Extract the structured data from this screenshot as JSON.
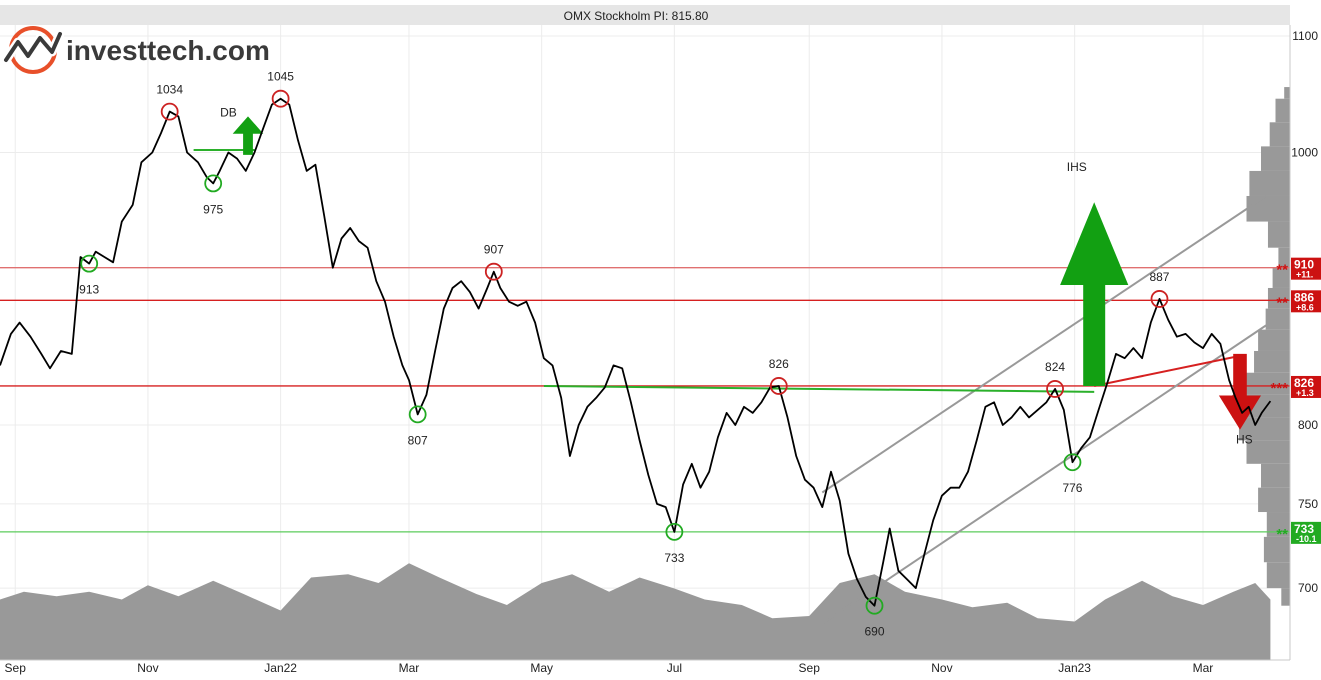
{
  "logo": {
    "text": "investtech.com",
    "accent_color": "#e8502a"
  },
  "chart_data": {
    "type": "line",
    "title": "OMX Stockholm PI: 815.80",
    "last_value": 815.8,
    "y_scale": "log",
    "ylim": [
      660,
      1110
    ],
    "y_ticks": [
      {
        "value": 700,
        "label": "700"
      },
      {
        "value": 750,
        "label": "750"
      },
      {
        "value": 800,
        "label": "800"
      },
      {
        "value": 1000,
        "label": "1000"
      },
      {
        "value": 1100,
        "label": "1100"
      }
    ],
    "x_ticks": [
      {
        "date": "2021-09-01",
        "label": "Sep"
      },
      {
        "date": "2021-11-01",
        "label": "Nov"
      },
      {
        "date": "2022-01-01",
        "label": "Jan22"
      },
      {
        "date": "2022-03-01",
        "label": "Mar"
      },
      {
        "date": "2022-05-01",
        "label": "May"
      },
      {
        "date": "2022-07-01",
        "label": "Jul"
      },
      {
        "date": "2022-09-01",
        "label": "Sep"
      },
      {
        "date": "2022-11-01",
        "label": "Nov"
      },
      {
        "date": "2023-01-01",
        "label": "Jan23"
      },
      {
        "date": "2023-03-01",
        "label": "Mar"
      }
    ],
    "xlim": [
      "2021-08-25",
      "2023-04-10"
    ],
    "grid": true,
    "price_series": [
      [
        "2021-08-25",
        840
      ],
      [
        "2021-08-30",
        862
      ],
      [
        "2021-09-03",
        870
      ],
      [
        "2021-09-08",
        860
      ],
      [
        "2021-09-13",
        848
      ],
      [
        "2021-09-17",
        838
      ],
      [
        "2021-09-22",
        850
      ],
      [
        "2021-09-27",
        848
      ],
      [
        "2021-10-01",
        918
      ],
      [
        "2021-10-05",
        913
      ],
      [
        "2021-10-08",
        922
      ],
      [
        "2021-10-12",
        918
      ],
      [
        "2021-10-16",
        914
      ],
      [
        "2021-10-20",
        945
      ],
      [
        "2021-10-25",
        958
      ],
      [
        "2021-10-29",
        992
      ],
      [
        "2021-11-03",
        1000
      ],
      [
        "2021-11-07",
        1016
      ],
      [
        "2021-11-11",
        1034
      ],
      [
        "2021-11-15",
        1030
      ],
      [
        "2021-11-19",
        1000
      ],
      [
        "2021-11-24",
        992
      ],
      [
        "2021-11-28",
        980
      ],
      [
        "2021-12-01",
        975
      ],
      [
        "2021-12-04",
        985
      ],
      [
        "2021-12-08",
        1000
      ],
      [
        "2021-12-12",
        995
      ],
      [
        "2021-12-16",
        985
      ],
      [
        "2021-12-20",
        1000
      ],
      [
        "2021-12-24",
        1020
      ],
      [
        "2021-12-28",
        1040
      ],
      [
        "2022-01-01",
        1045
      ],
      [
        "2022-01-05",
        1040
      ],
      [
        "2022-01-09",
        1010
      ],
      [
        "2022-01-13",
        985
      ],
      [
        "2022-01-17",
        990
      ],
      [
        "2022-01-21",
        950
      ],
      [
        "2022-01-25",
        910
      ],
      [
        "2022-01-29",
        932
      ],
      [
        "2022-02-02",
        940
      ],
      [
        "2022-02-06",
        930
      ],
      [
        "2022-02-10",
        925
      ],
      [
        "2022-02-14",
        900
      ],
      [
        "2022-02-18",
        885
      ],
      [
        "2022-02-22",
        860
      ],
      [
        "2022-02-26",
        840
      ],
      [
        "2022-03-01",
        830
      ],
      [
        "2022-03-05",
        807
      ],
      [
        "2022-03-09",
        820
      ],
      [
        "2022-03-13",
        850
      ],
      [
        "2022-03-17",
        880
      ],
      [
        "2022-03-21",
        895
      ],
      [
        "2022-03-25",
        900
      ],
      [
        "2022-03-29",
        892
      ],
      [
        "2022-04-02",
        880
      ],
      [
        "2022-04-06",
        895
      ],
      [
        "2022-04-09",
        907
      ],
      [
        "2022-04-12",
        895
      ],
      [
        "2022-04-16",
        885
      ],
      [
        "2022-04-20",
        882
      ],
      [
        "2022-04-24",
        885
      ],
      [
        "2022-04-28",
        870
      ],
      [
        "2022-05-02",
        845
      ],
      [
        "2022-05-06",
        840
      ],
      [
        "2022-05-10",
        818
      ],
      [
        "2022-05-14",
        780
      ],
      [
        "2022-05-18",
        800
      ],
      [
        "2022-05-22",
        812
      ],
      [
        "2022-05-26",
        818
      ],
      [
        "2022-05-30",
        825
      ],
      [
        "2022-06-03",
        840
      ],
      [
        "2022-06-07",
        838
      ],
      [
        "2022-06-11",
        815
      ],
      [
        "2022-06-15",
        790
      ],
      [
        "2022-06-19",
        768
      ],
      [
        "2022-06-23",
        750
      ],
      [
        "2022-06-27",
        748
      ],
      [
        "2022-07-01",
        733
      ],
      [
        "2022-07-05",
        762
      ],
      [
        "2022-07-09",
        775
      ],
      [
        "2022-07-13",
        760
      ],
      [
        "2022-07-17",
        770
      ],
      [
        "2022-07-21",
        792
      ],
      [
        "2022-07-25",
        808
      ],
      [
        "2022-07-29",
        800
      ],
      [
        "2022-08-02",
        812
      ],
      [
        "2022-08-06",
        808
      ],
      [
        "2022-08-10",
        815
      ],
      [
        "2022-08-14",
        825
      ],
      [
        "2022-08-18",
        826
      ],
      [
        "2022-08-22",
        805
      ],
      [
        "2022-08-26",
        780
      ],
      [
        "2022-08-30",
        765
      ],
      [
        "2022-09-03",
        760
      ],
      [
        "2022-09-07",
        748
      ],
      [
        "2022-09-11",
        770
      ],
      [
        "2022-09-15",
        752
      ],
      [
        "2022-09-19",
        720
      ],
      [
        "2022-09-23",
        705
      ],
      [
        "2022-09-27",
        695
      ],
      [
        "2022-10-01",
        690
      ],
      [
        "2022-10-05",
        715
      ],
      [
        "2022-10-08",
        735
      ],
      [
        "2022-10-12",
        710
      ],
      [
        "2022-10-16",
        705
      ],
      [
        "2022-10-20",
        700
      ],
      [
        "2022-10-24",
        720
      ],
      [
        "2022-10-28",
        740
      ],
      [
        "2022-11-01",
        755
      ],
      [
        "2022-11-05",
        760
      ],
      [
        "2022-11-09",
        760
      ],
      [
        "2022-11-13",
        770
      ],
      [
        "2022-11-17",
        790
      ],
      [
        "2022-11-21",
        812
      ],
      [
        "2022-11-25",
        815
      ],
      [
        "2022-11-29",
        800
      ],
      [
        "2022-12-03",
        805
      ],
      [
        "2022-12-07",
        812
      ],
      [
        "2022-12-11",
        805
      ],
      [
        "2022-12-15",
        810
      ],
      [
        "2022-12-19",
        815
      ],
      [
        "2022-12-23",
        824
      ],
      [
        "2022-12-27",
        810
      ],
      [
        "2022-12-31",
        776
      ],
      [
        "2023-01-04",
        785
      ],
      [
        "2023-01-08",
        792
      ],
      [
        "2023-01-12",
        810
      ],
      [
        "2023-01-16",
        828
      ],
      [
        "2023-01-20",
        848
      ],
      [
        "2023-01-24",
        845
      ],
      [
        "2023-01-28",
        852
      ],
      [
        "2023-02-01",
        845
      ],
      [
        "2023-02-05",
        870
      ],
      [
        "2023-02-09",
        887
      ],
      [
        "2023-02-13",
        872
      ],
      [
        "2023-02-17",
        860
      ],
      [
        "2023-02-21",
        862
      ],
      [
        "2023-02-25",
        856
      ],
      [
        "2023-03-01",
        852
      ],
      [
        "2023-03-05",
        862
      ],
      [
        "2023-03-09",
        855
      ],
      [
        "2023-03-13",
        830
      ],
      [
        "2023-03-16",
        818
      ],
      [
        "2023-03-19",
        808
      ],
      [
        "2023-03-22",
        812
      ],
      [
        "2023-03-25",
        800
      ],
      [
        "2023-03-28",
        808
      ],
      [
        "2023-04-01",
        815.8
      ]
    ],
    "annotations": [
      {
        "type": "peak",
        "date": "2021-11-11",
        "value": 1034,
        "label": "1034"
      },
      {
        "type": "peak",
        "date": "2022-01-01",
        "value": 1045,
        "label": "1045"
      },
      {
        "type": "peak",
        "date": "2022-04-09",
        "value": 907,
        "label": "907"
      },
      {
        "type": "peak",
        "date": "2022-08-18",
        "value": 826,
        "label": "826"
      },
      {
        "type": "peak",
        "date": "2022-12-23",
        "value": 824,
        "label": "824"
      },
      {
        "type": "peak",
        "date": "2023-02-09",
        "value": 887,
        "label": "887"
      },
      {
        "type": "trough",
        "date": "2021-10-05",
        "value": 913,
        "label": "913"
      },
      {
        "type": "trough",
        "date": "2021-12-01",
        "value": 975,
        "label": "975"
      },
      {
        "type": "trough",
        "date": "2022-03-05",
        "value": 807,
        "label": "807"
      },
      {
        "type": "trough",
        "date": "2022-07-01",
        "value": 733,
        "label": "733"
      },
      {
        "type": "trough",
        "date": "2022-10-01",
        "value": 690,
        "label": "690"
      },
      {
        "type": "trough",
        "date": "2022-12-31",
        "value": 776,
        "label": "776"
      }
    ],
    "pattern_labels": [
      {
        "label": "DB",
        "date": "2021-12-08",
        "value": 1030
      },
      {
        "label": "IHS",
        "date": "2023-01-02",
        "value": 985
      },
      {
        "label": "HS",
        "date": "2023-03-20",
        "value": 788
      }
    ],
    "arrows": [
      {
        "direction": "up",
        "color": "#12a012",
        "date": "2021-12-17",
        "from": 998,
        "to": 1030
      },
      {
        "direction": "up",
        "color": "#12a012",
        "date": "2023-01-10",
        "from": 826,
        "to": 960
      },
      {
        "direction": "down",
        "color": "#cc1111",
        "date": "2023-03-18",
        "from": 848,
        "to": 797
      }
    ],
    "horizontal_levels": [
      {
        "value": 910,
        "color": "#e07070",
        "label": "910",
        "change": "+11.",
        "stars": "**",
        "label_color": "#cc1111"
      },
      {
        "value": 886,
        "color": "#d62020",
        "label": "886",
        "change": "+8.6",
        "stars": "**",
        "label_color": "#cc1111"
      },
      {
        "value": 826,
        "color": "#d62020",
        "label": "826",
        "change": "+1.3",
        "stars": "***",
        "label_color": "#cc1111"
      },
      {
        "value": 733,
        "color": "#5ccc5c",
        "label": "733",
        "change": "-10.1",
        "stars": "**",
        "label_color": "#22aa22"
      }
    ],
    "trend_lines": [
      {
        "color": "#999999",
        "from": [
          "2022-09-07",
          757
        ],
        "to": [
          "2023-03-30",
          965
        ]
      },
      {
        "color": "#999999",
        "from": [
          "2022-09-07",
          680
        ],
        "to": [
          "2023-03-30",
          868
        ]
      },
      {
        "color": "#2bb02b",
        "from": [
          "2021-11-22",
          1002
        ],
        "to": [
          "2021-12-20",
          1002
        ]
      },
      {
        "color": "#2bb02b",
        "from": [
          "2022-05-02",
          826
        ],
        "to": [
          "2023-01-10",
          822
        ]
      },
      {
        "color": "#d62020",
        "from": [
          "2023-01-10",
          826
        ],
        "to": [
          "2023-03-16",
          846
        ]
      }
    ],
    "volume_profile": [
      {
        "lo": 690,
        "hi": 700,
        "w": 0.15
      },
      {
        "lo": 700,
        "hi": 715,
        "w": 0.4
      },
      {
        "lo": 715,
        "hi": 730,
        "w": 0.45
      },
      {
        "lo": 730,
        "hi": 745,
        "w": 0.4
      },
      {
        "lo": 745,
        "hi": 760,
        "w": 0.55
      },
      {
        "lo": 760,
        "hi": 775,
        "w": 0.5
      },
      {
        "lo": 775,
        "hi": 790,
        "w": 0.75
      },
      {
        "lo": 790,
        "hi": 805,
        "w": 0.88
      },
      {
        "lo": 805,
        "hi": 820,
        "w": 1.0
      },
      {
        "lo": 820,
        "hi": 835,
        "w": 0.85
      },
      {
        "lo": 835,
        "hi": 850,
        "w": 0.62
      },
      {
        "lo": 850,
        "hi": 865,
        "w": 0.55
      },
      {
        "lo": 865,
        "hi": 880,
        "w": 0.42
      },
      {
        "lo": 880,
        "hi": 895,
        "w": 0.38
      },
      {
        "lo": 895,
        "hi": 910,
        "w": 0.3
      },
      {
        "lo": 910,
        "hi": 925,
        "w": 0.2
      },
      {
        "lo": 925,
        "hi": 945,
        "w": 0.38
      },
      {
        "lo": 945,
        "hi": 965,
        "w": 0.75
      },
      {
        "lo": 965,
        "hi": 985,
        "w": 0.7
      },
      {
        "lo": 985,
        "hi": 1005,
        "w": 0.5
      },
      {
        "lo": 1005,
        "hi": 1025,
        "w": 0.35
      },
      {
        "lo": 1025,
        "hi": 1045,
        "w": 0.25
      },
      {
        "lo": 1045,
        "hi": 1055,
        "w": 0.1
      }
    ],
    "volume_series": [
      [
        "2021-08-25",
        0.55
      ],
      [
        "2021-09-05",
        0.62
      ],
      [
        "2021-09-20",
        0.58
      ],
      [
        "2021-10-05",
        0.62
      ],
      [
        "2021-10-20",
        0.55
      ],
      [
        "2021-11-01",
        0.68
      ],
      [
        "2021-11-15",
        0.58
      ],
      [
        "2021-12-01",
        0.72
      ],
      [
        "2021-12-15",
        0.6
      ],
      [
        "2022-01-01",
        0.45
      ],
      [
        "2022-01-15",
        0.75
      ],
      [
        "2022-02-01",
        0.78
      ],
      [
        "2022-02-15",
        0.7
      ],
      [
        "2022-03-01",
        0.88
      ],
      [
        "2022-03-15",
        0.75
      ],
      [
        "2022-04-01",
        0.6
      ],
      [
        "2022-04-15",
        0.5
      ],
      [
        "2022-05-01",
        0.7
      ],
      [
        "2022-05-15",
        0.78
      ],
      [
        "2022-06-01",
        0.62
      ],
      [
        "2022-06-15",
        0.75
      ],
      [
        "2022-07-01",
        0.65
      ],
      [
        "2022-07-15",
        0.55
      ],
      [
        "2022-08-01",
        0.5
      ],
      [
        "2022-08-15",
        0.38
      ],
      [
        "2022-09-01",
        0.4
      ],
      [
        "2022-09-15",
        0.7
      ],
      [
        "2022-10-01",
        0.78
      ],
      [
        "2022-10-15",
        0.62
      ],
      [
        "2022-11-01",
        0.55
      ],
      [
        "2022-11-15",
        0.48
      ],
      [
        "2022-12-01",
        0.52
      ],
      [
        "2022-12-15",
        0.38
      ],
      [
        "2023-01-01",
        0.35
      ],
      [
        "2023-01-15",
        0.55
      ],
      [
        "2023-02-01",
        0.72
      ],
      [
        "2023-02-15",
        0.58
      ],
      [
        "2023-03-01",
        0.5
      ],
      [
        "2023-03-15",
        0.62
      ],
      [
        "2023-03-25",
        0.7
      ],
      [
        "2023-04-01",
        0.55
      ]
    ]
  }
}
